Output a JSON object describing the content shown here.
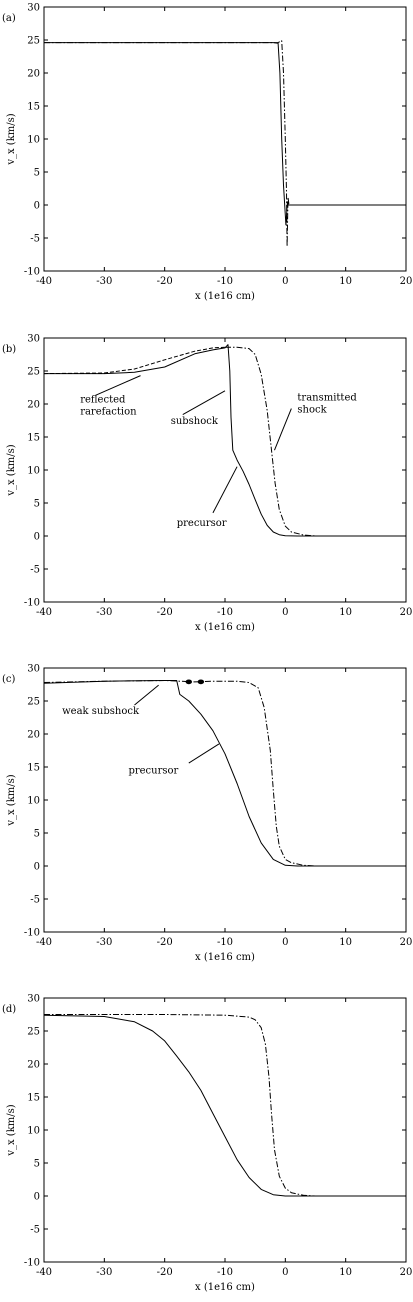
{
  "chart_data": [
    {
      "type": "line",
      "panel_label": "(a)",
      "xlabel": "x (1e16 cm)",
      "ylabel": "v_x (km/s)",
      "xlim": [
        -40,
        20
      ],
      "ylim": [
        -10,
        30
      ],
      "xticks": [
        -40,
        -30,
        -20,
        -10,
        0,
        10,
        20
      ],
      "yticks": [
        -10,
        -5,
        0,
        5,
        10,
        15,
        20,
        25,
        30
      ],
      "grid": false,
      "series": [
        {
          "style": "solid",
          "points": [
            [
              -40,
              24.6
            ],
            [
              -2,
              24.6
            ],
            [
              -1.2,
              24.5
            ],
            [
              -0.9,
              20
            ],
            [
              -0.6,
              10
            ],
            [
              -0.3,
              3
            ],
            [
              0,
              -1.5
            ],
            [
              0.1,
              -3
            ],
            [
              0.25,
              -1
            ],
            [
              0.35,
              0.5
            ],
            [
              0.5,
              0
            ],
            [
              20,
              0
            ]
          ]
        },
        {
          "style": "dashdot",
          "points": [
            [
              -40,
              24.6
            ],
            [
              -1.2,
              24.6
            ],
            [
              -0.6,
              24.9
            ],
            [
              -0.3,
              20
            ],
            [
              0,
              10
            ],
            [
              0.2,
              2
            ],
            [
              0.3,
              -6.3
            ],
            [
              0.45,
              1.2
            ],
            [
              0.6,
              0
            ],
            [
              20,
              0
            ]
          ]
        }
      ],
      "annotations": []
    },
    {
      "type": "line",
      "panel_label": "(b)",
      "xlabel": "x (1e16 cm)",
      "ylabel": "v_x (km/s)",
      "xlim": [
        -40,
        20
      ],
      "ylim": [
        -10,
        30
      ],
      "xticks": [
        -40,
        -30,
        -20,
        -10,
        0,
        10,
        20
      ],
      "yticks": [
        -10,
        -5,
        0,
        5,
        10,
        15,
        20,
        25,
        30
      ],
      "grid": false,
      "series": [
        {
          "style": "solid",
          "points": [
            [
              -40,
              24.6
            ],
            [
              -30,
              24.6
            ],
            [
              -25,
              24.8
            ],
            [
              -20,
              25.6
            ],
            [
              -15,
              27.6
            ],
            [
              -12,
              28.2
            ],
            [
              -10,
              28.5
            ],
            [
              -9.5,
              29
            ],
            [
              -9.2,
              25
            ],
            [
              -9,
              18
            ],
            [
              -8.7,
              13
            ],
            [
              -8,
              11.5
            ],
            [
              -7,
              9.8
            ],
            [
              -6,
              7.8
            ],
            [
              -5,
              5.5
            ],
            [
              -4,
              3.3
            ],
            [
              -3,
              1.6
            ],
            [
              -2,
              0.6
            ],
            [
              -1,
              0.2
            ],
            [
              0,
              0.05
            ],
            [
              2,
              0
            ],
            [
              20,
              0
            ]
          ]
        },
        {
          "style": "dashed",
          "points": [
            [
              -40,
              24.6
            ],
            [
              -30,
              24.7
            ],
            [
              -25,
              25.3
            ],
            [
              -20,
              26.7
            ],
            [
              -15,
              28
            ],
            [
              -12,
              28.5
            ],
            [
              -10,
              28.6
            ]
          ]
        },
        {
          "style": "dashdot",
          "points": [
            [
              -10,
              28.6
            ],
            [
              -8,
              28.6
            ],
            [
              -6,
              28.4
            ],
            [
              -5,
              27.5
            ],
            [
              -4,
              24.5
            ],
            [
              -3,
              19
            ],
            [
              -2.3,
              13
            ],
            [
              -1.7,
              8
            ],
            [
              -1,
              4
            ],
            [
              0,
              1.5
            ],
            [
              1,
              0.6
            ],
            [
              3,
              0.15
            ],
            [
              5,
              0
            ],
            [
              20,
              0
            ]
          ]
        }
      ],
      "annotations": [
        {
          "text": [
            "reflected",
            "rarefaction"
          ],
          "x": -34,
          "y": 20.2,
          "ax": -24,
          "ay": 24.3,
          "tx": -31.5,
          "ty": 21.3
        },
        {
          "text": [
            "subshock"
          ],
          "x": -19,
          "y": 17,
          "ax": -10,
          "ay": 22,
          "tx": -17,
          "ty": 18.4
        },
        {
          "text": [
            "transmitted",
            "shock"
          ],
          "x": 2,
          "y": 20.5,
          "ax": -1.8,
          "ay": 13,
          "tx": 1,
          "ty": 19.3
        },
        {
          "text": [
            "precursor"
          ],
          "x": -18,
          "y": 1.5,
          "ax": -8,
          "ay": 10.5,
          "tx": -12,
          "ty": 3.5
        }
      ]
    },
    {
      "type": "line",
      "panel_label": "(c)",
      "xlabel": "x (1e16 cm)",
      "ylabel": "v_x (km/s)",
      "xlim": [
        -40,
        20
      ],
      "ylim": [
        -10,
        30
      ],
      "xticks": [
        -40,
        -30,
        -20,
        -10,
        0,
        10,
        20
      ],
      "yticks": [
        -10,
        -5,
        0,
        5,
        10,
        15,
        20,
        25,
        30
      ],
      "grid": false,
      "series": [
        {
          "style": "solid",
          "points": [
            [
              -40,
              27.7
            ],
            [
              -30,
              28
            ],
            [
              -20,
              28.1
            ],
            [
              -18,
              28.1
            ],
            [
              -17.5,
              26
            ],
            [
              -16,
              25
            ],
            [
              -14,
              23
            ],
            [
              -12,
              20.5
            ],
            [
              -10,
              17
            ],
            [
              -8,
              12.5
            ],
            [
              -6,
              7.5
            ],
            [
              -4,
              3.5
            ],
            [
              -2,
              1
            ],
            [
              0,
              0.1
            ],
            [
              2,
              0
            ],
            [
              20,
              0
            ]
          ]
        },
        {
          "style": "dashdot",
          "points": [
            [
              -40,
              27.8
            ],
            [
              -30,
              28
            ],
            [
              -20,
              28.1
            ],
            [
              -17.5,
              28
            ],
            [
              -15,
              27.9
            ],
            [
              -12,
              28
            ],
            [
              -8,
              28
            ],
            [
              -6,
              27.8
            ],
            [
              -4.5,
              27
            ],
            [
              -3.5,
              24
            ],
            [
              -2.5,
              17.5
            ],
            [
              -2,
              11.5
            ],
            [
              -1.5,
              6
            ],
            [
              -1,
              3
            ],
            [
              0,
              1
            ],
            [
              1,
              0.5
            ],
            [
              3,
              0.1
            ],
            [
              5,
              0
            ],
            [
              20,
              0
            ]
          ]
        }
      ],
      "markers": [
        [
          -16,
          27.9
        ],
        [
          -14,
          27.9
        ]
      ],
      "annotations": [
        {
          "text": [
            "weak subshock"
          ],
          "x": -37,
          "y": 23,
          "ax": -21,
          "ay": 27.4,
          "tx": -25,
          "ty": 24.4
        },
        {
          "text": [
            "precursor"
          ],
          "x": -26,
          "y": 14,
          "ax": -11,
          "ay": 18.5,
          "tx": -16,
          "ty": 15.6
        }
      ]
    },
    {
      "type": "line",
      "panel_label": "(d)",
      "xlabel": "x (1e16 cm)",
      "ylabel": "v_x (km/s)",
      "xlim": [
        -40,
        20
      ],
      "ylim": [
        -10,
        30
      ],
      "xticks": [
        -40,
        -30,
        -20,
        -10,
        0,
        10,
        20
      ],
      "yticks": [
        -10,
        -5,
        0,
        5,
        10,
        15,
        20,
        25,
        30
      ],
      "grid": false,
      "series": [
        {
          "style": "solid",
          "points": [
            [
              -40,
              27.4
            ],
            [
              -30,
              27.2
            ],
            [
              -25,
              26.4
            ],
            [
              -22,
              25
            ],
            [
              -20,
              23.5
            ],
            [
              -18,
              21.2
            ],
            [
              -16,
              18.8
            ],
            [
              -14,
              16
            ],
            [
              -12,
              12.5
            ],
            [
              -10,
              9
            ],
            [
              -8,
              5.5
            ],
            [
              -6,
              2.8
            ],
            [
              -4,
              1
            ],
            [
              -2,
              0.2
            ],
            [
              0,
              0
            ],
            [
              20,
              0
            ]
          ]
        },
        {
          "style": "dashdot",
          "points": [
            [
              -40,
              27.5
            ],
            [
              -20,
              27.5
            ],
            [
              -10,
              27.4
            ],
            [
              -6,
              27.1
            ],
            [
              -5,
              26.7
            ],
            [
              -4,
              25.5
            ],
            [
              -3.3,
              23
            ],
            [
              -2.7,
              18
            ],
            [
              -2.3,
              12.5
            ],
            [
              -1.8,
              7
            ],
            [
              -1,
              3
            ],
            [
              0,
              1.2
            ],
            [
              1,
              0.5
            ],
            [
              3,
              0.1
            ],
            [
              5,
              0
            ],
            [
              20,
              0
            ]
          ]
        }
      ],
      "annotations": []
    }
  ]
}
